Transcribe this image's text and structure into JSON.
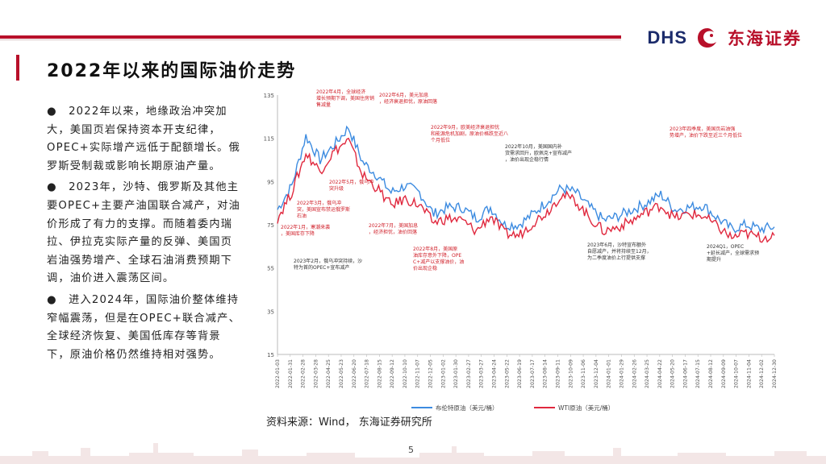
{
  "header": {
    "logo_en": "DHS",
    "logo_cn": "东海证券"
  },
  "title": "2022年以来的国际油价走势",
  "bullets": [
    "●　2022年以来，地缘政治冲突加大，美国页岩保持资本开支纪律，OPEC+实际增产远低于配额增长。俄罗斯受制裁或影响长期原油产量。",
    "●　2023年，沙特、俄罗斯及其他主要OPEC+主要产油国联合减产，对油价形成了有力的支撑。而随着委内瑞拉、伊拉克实际产量的反弹、美国页岩油强势增产、全球石油消费预期下调，油价进入震荡区间。",
    "●　进入2024年，国际油价整体维持窄幅震荡，但是在OPEC+联合减产、全球经济恢复、美国低库存等背景下，原油价格仍然维持相对强势。"
  ],
  "source": "资料来源：Wind， 东海证券研究所",
  "page_number": "5",
  "colors": {
    "brand_red": "#b8102a",
    "brand_navy": "#1b2b6b",
    "brent": "#3c8be0",
    "wti": "#e0283e",
    "annotation": "#d0202a",
    "annotation_dark": "#333333"
  },
  "chart_data": {
    "type": "line",
    "y_ticks": [
      "15",
      "35",
      "55",
      "75",
      "95",
      "115",
      "135"
    ],
    "ylim": [
      15,
      135
    ],
    "x_tick_labels": [
      "2022-01-03",
      "2022-01-31",
      "2022-02-28",
      "2022-03-28",
      "2022-04-25",
      "2022-05-23",
      "2022-06-20",
      "2022-07-18",
      "2022-08-15",
      "2022-09-12",
      "2022-10-10",
      "2022-11-07",
      "2022-12-05",
      "2023-01-02",
      "2023-01-30",
      "2023-02-27",
      "2023-03-27",
      "2023-04-24",
      "2023-05-22",
      "2023-06-19",
      "2023-07-17",
      "2023-08-14",
      "2023-09-11",
      "2023-10-09",
      "2023-11-06",
      "2023-12-04",
      "2024-01-01",
      "2024-01-29",
      "2024-02-26",
      "2024-03-25",
      "2024-04-22",
      "2024-05-20",
      "2024-06-17",
      "2024-07-15",
      "2024-08-12",
      "2024-09-09",
      "2024-10-07",
      "2024-11-04",
      "2024-12-02",
      "2024-12-30"
    ],
    "x": [
      "2022-01",
      "2022-02",
      "2022-03",
      "2022-04",
      "2022-05",
      "2022-06",
      "2022-07",
      "2022-08",
      "2022-09",
      "2022-10",
      "2022-11",
      "2022-12",
      "2023-01",
      "2023-02",
      "2023-03",
      "2023-04",
      "2023-05",
      "2023-06",
      "2023-07",
      "2023-08",
      "2023-09",
      "2023-10",
      "2023-11",
      "2023-12",
      "2024-01",
      "2024-02",
      "2024-03",
      "2024-04",
      "2024-05",
      "2024-06",
      "2024-07",
      "2024-08",
      "2024-09",
      "2024-10",
      "2024-11",
      "2024-12"
    ],
    "series": [
      {
        "name": "布伦特原油（美元/桶）",
        "values": [
          82,
          93,
          116,
          105,
          112,
          120,
          104,
          98,
          90,
          93,
          90,
          80,
          83,
          83,
          78,
          83,
          75,
          75,
          80,
          86,
          92,
          90,
          83,
          77,
          79,
          82,
          85,
          89,
          82,
          83,
          84,
          78,
          73,
          75,
          73,
          74
        ]
      },
      {
        "name": "WTI原油（美元/桶）",
        "values": [
          78,
          90,
          108,
          100,
          109,
          114,
          98,
          92,
          84,
          87,
          84,
          76,
          78,
          77,
          72,
          79,
          71,
          70,
          76,
          81,
          89,
          86,
          78,
          72,
          74,
          77,
          81,
          84,
          78,
          80,
          79,
          74,
          69,
          71,
          69,
          70
        ]
      }
    ],
    "annotations": [
      {
        "id": "a1",
        "text": "2022年4月，全球经济增长预期下调，美国住房销售减量",
        "color": "red"
      },
      {
        "id": "a2",
        "text": "2022年6月，美元加息，经济衰退担忧，原油回落",
        "color": "red"
      },
      {
        "id": "a3",
        "text": "2022年9月，欧美经济衰退担忧和能源危机加剧，原油价格跌至近八个月低位",
        "color": "red"
      },
      {
        "id": "a4",
        "text": "2022年10月，美国国内补货需求回升，欧佩克+宣布减产，油价出现企稳行情",
        "color": "dark"
      },
      {
        "id": "a5",
        "text": "2023年四季度，美国页岩油强势增产，油价下跌至近三个月低位",
        "color": "red"
      },
      {
        "id": "a6",
        "text": "2022年5月，俄乌冲突升级",
        "color": "red"
      },
      {
        "id": "a7",
        "text": "2022年3月，俄乌冲突，美国宣布禁运俄罗斯石油",
        "color": "red"
      },
      {
        "id": "a8",
        "text": "2022年1月，寒潮来袭，美国库存下降",
        "color": "red"
      },
      {
        "id": "a9",
        "text": "2022年7月，美国加息，经济担忧，油价回落",
        "color": "red"
      },
      {
        "id": "a10",
        "text": "2022年8月，美国原油库存意外下降，OPEC+减产以支撑油价，油价出现企稳",
        "color": "red"
      },
      {
        "id": "a11",
        "text": "2023年2月，俄乌冲突持续，沙特为首的OPEC+宣布减产",
        "color": "dark"
      },
      {
        "id": "a12",
        "text": "2023年6月，沙特宣布额外自愿减产，并将持续至12月，为二季度油价上行提供支撑",
        "color": "dark"
      },
      {
        "id": "a13",
        "text": "2024Q1，OPEC+延长减产，全球需求预期提升",
        "color": "dark"
      }
    ]
  }
}
